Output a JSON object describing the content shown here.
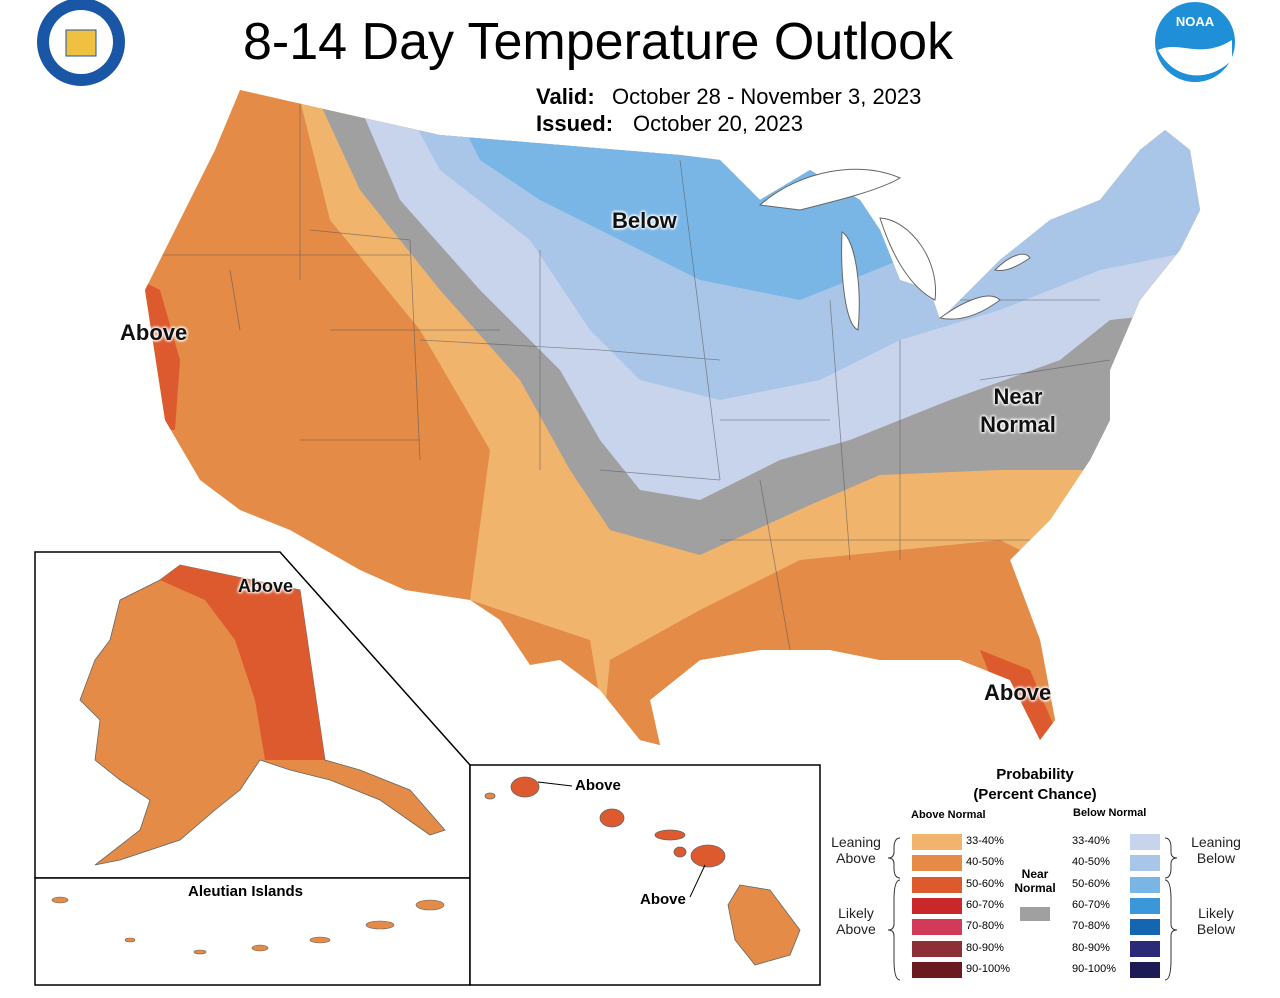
{
  "header": {
    "title": "8-14 Day Temperature Outlook",
    "valid_label": "Valid:",
    "valid_dates": "October 28 - November 3, 2023",
    "issued_label": "Issued:",
    "issued_date": "October 20, 2023",
    "noaa": "NOAA"
  },
  "map": {
    "below_label": "Below",
    "above_west_label": "Above",
    "near_normal_label": "Near Normal",
    "above_florida_label": "Above",
    "alaska_label": "Above",
    "aleutian_title": "Aleutian Islands",
    "hawaii_labels": [
      "Above",
      "Above"
    ]
  },
  "legend": {
    "title": "Probability",
    "subtitle": "(Percent Chance)",
    "above_header": "Above Normal",
    "below_header": "Below Normal",
    "near_label": "Near Normal",
    "near_color": "#a0a0a0",
    "leaning_above": "Leaning Above",
    "likely_above": "Likely Above",
    "leaning_below": "Leaning Below",
    "likely_below": "Likely Below",
    "above_bins": [
      {
        "label": "33-40%",
        "color": "#f0b46c"
      },
      {
        "label": "40-50%",
        "color": "#e38b47"
      },
      {
        "label": "50-60%",
        "color": "#dd5a2e"
      },
      {
        "label": "60-70%",
        "color": "#c8282a"
      },
      {
        "label": "70-80%",
        "color": "#d23a5a"
      },
      {
        "label": "80-90%",
        "color": "#8e2f36"
      },
      {
        "label": "90-100%",
        "color": "#6b1a22"
      }
    ],
    "below_bins": [
      {
        "label": "33-40%",
        "color": "#c8d3ec"
      },
      {
        "label": "40-50%",
        "color": "#a9c6e8"
      },
      {
        "label": "50-60%",
        "color": "#79b6e6"
      },
      {
        "label": "60-70%",
        "color": "#3b97d9"
      },
      {
        "label": "70-80%",
        "color": "#1566b0"
      },
      {
        "label": "80-90%",
        "color": "#2a2a78"
      },
      {
        "label": "90-100%",
        "color": "#1c1b55"
      }
    ]
  }
}
